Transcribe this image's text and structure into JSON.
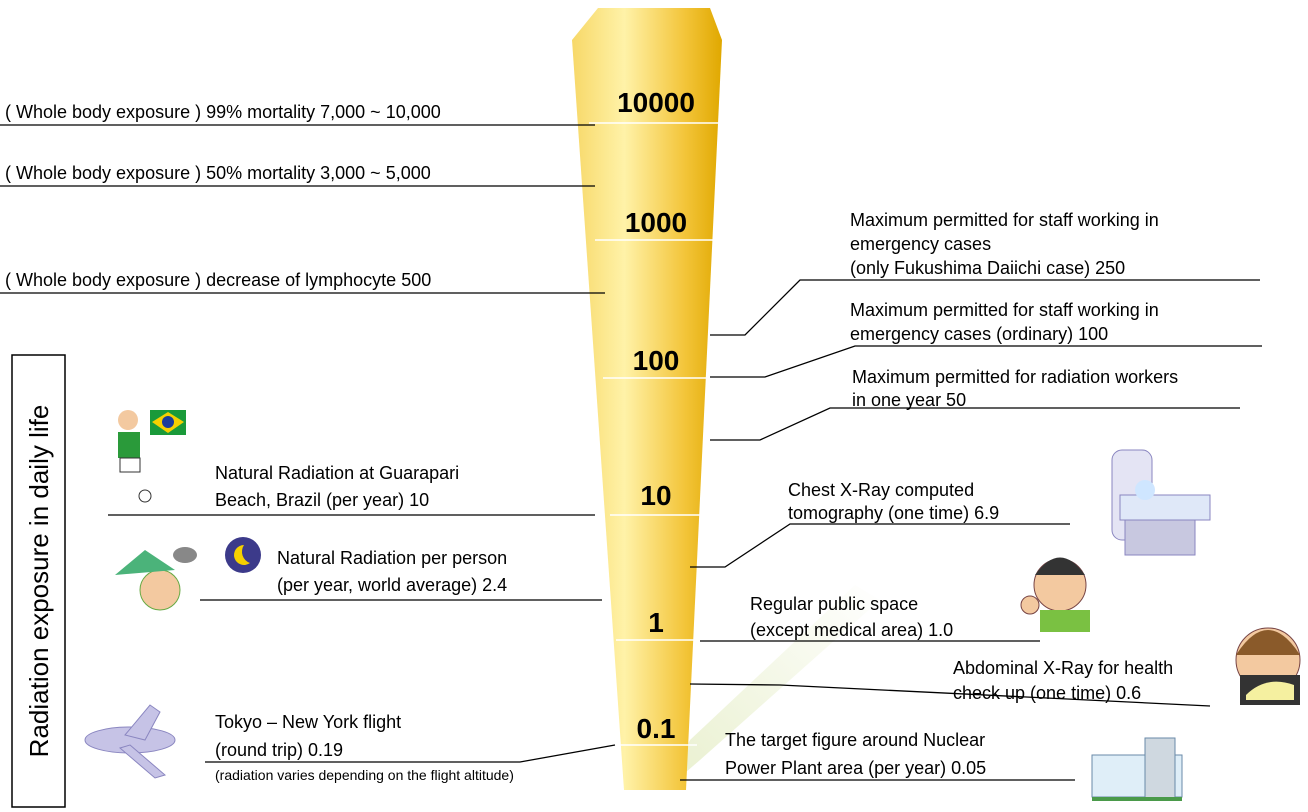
{
  "side_label": "Radiation exposure in daily life",
  "scale": [
    "10000",
    "1000",
    "100",
    "10",
    "1",
    "0.1"
  ],
  "left_items": [
    {
      "lines": [
        "( Whole body exposure ) 99% mortality   7,000 ~ 10,000"
      ]
    },
    {
      "lines": [
        "( Whole body exposure ) 50% mortality   3,000 ~ 5,000"
      ]
    },
    {
      "lines": [
        "( Whole body exposure ) decrease of lymphocyte   500"
      ]
    },
    {
      "lines": [
        "Natural Radiation at Guarapari",
        "Beach, Brazil (per year)    10"
      ]
    },
    {
      "lines": [
        "Natural Radiation per person",
        "(per year, world average)    2.4"
      ]
    },
    {
      "lines": [
        "Tokyo – New York flight",
        "(round trip)   0.19",
        "(radiation varies depending on the flight altitude)"
      ]
    }
  ],
  "right_items": [
    {
      "lines": [
        "Maximum permitted for staff working in",
        "emergency cases",
        "(only Fukushima Daiichi case)    250"
      ]
    },
    {
      "lines": [
        "Maximum permitted for staff working in",
        "emergency cases (ordinary)    100"
      ]
    },
    {
      "lines": [
        "Maximum permitted for radiation workers",
        "in one year    50"
      ]
    },
    {
      "lines": [
        "Chest X-Ray computed",
        "tomography (one time)    6.9"
      ]
    },
    {
      "lines": [
        "Regular public space",
        "(except medical area)    1.0"
      ]
    },
    {
      "lines": [
        "Abdominal X-Ray for health",
        "check up (one time)    0.6"
      ]
    },
    {
      "lines": [
        "The target figure around Nuclear",
        "Power Plant area (per year)    0.05"
      ]
    }
  ]
}
